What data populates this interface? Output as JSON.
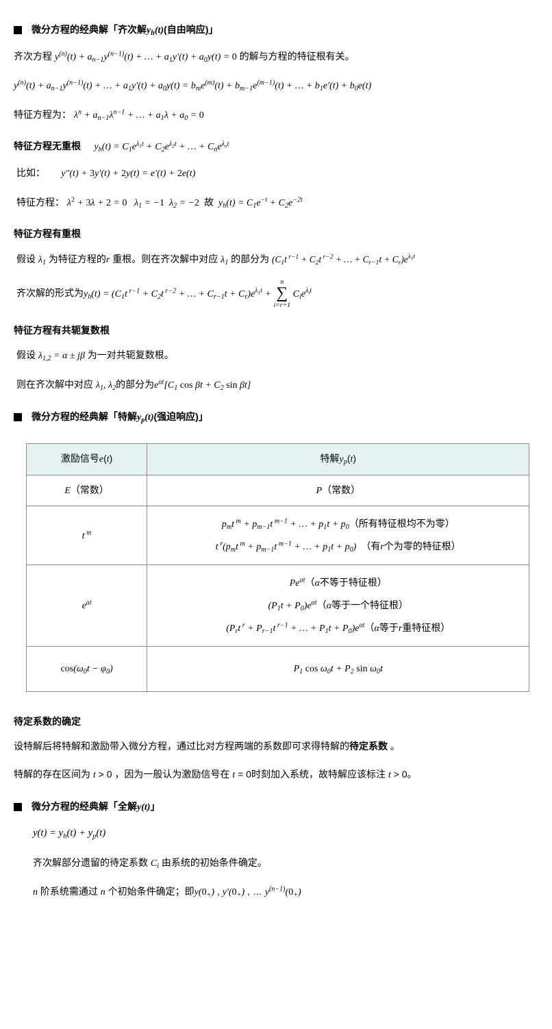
{
  "sec1": {
    "title_pre": "微分方程的经典解「齐次解",
    "title_math": "y<span class='sub'>h</span>(t)",
    "title_post": "(自由响应)」",
    "p1_pre": "齐次方程 ",
    "p1_math": "y<span class='sup'>(n)</span>(t) + a<span class='sub'>n−1</span>y<span class='sup'>(n−1)</span>(t) + … + a<span class='sub'>1</span>y′(t) + a<span class='sub'>0</span>y(t) = <span class='rm'>0</span>",
    "p1_post": " 的解与方程的特征根有关。",
    "p2_math": "y<span class='sup'>(n)</span>(t) + a<span class='sub'>n−1</span>y<span class='sup'>(n−1)</span>(t) + … + a<span class='sub'>1</span>y′(t) + a<span class='sub'>0</span>y(t) = b<span class='sub'>m</span>e<span class='sup'>(m)</span>(t) + b<span class='sub'>m−1</span>e<span class='sup'>(m−1)</span>(t) + … + b<span class='sub'>1</span>e′(t) + b<span class='sub'>0</span>e(t)",
    "p3_pre": "特征方程为：",
    "p3_math": "λ<span class='sup'>n</span> + a<span class='sub'>n−1</span>λ<span class='sup'>n−1</span> + … + a<span class='sub'>1</span>λ + a<span class='sub'>0</span> = <span class='rm'>0</span>"
  },
  "noRepeat": {
    "heading": "特征方程无重根",
    "eq": "y<span class='sub'>h</span>(t) = C<span class='sub'>1</span>e<span class='sup'>λ<span class='sub'>1</span>t</span> + C<span class='sub'>2</span>e<span class='sup'>λ<span class='sub'>2</span>t</span> + … + C<span class='sub'>n</span>e<span class='sup'>λ<span class='sub'>n</span>t</span>",
    "ex_label": "比如：",
    "ex_eq": "y″(t) + <span class='rm'>3</span>y′(t) + <span class='rm'>2</span>y(t) = e′(t) + <span class='rm'>2</span>e(t)",
    "char_label": "特征方程：",
    "char_eq": "λ<span class='sup'><span class='rm'>2</span></span> + <span class='rm'>3</span>λ + <span class='rm'>2</span> = <span class='rm'>0</span>&nbsp;&nbsp;&nbsp;λ<span class='sub'>1</span> = −<span class='rm'>1</span>&nbsp;&nbsp;λ<span class='sub'>2</span> = −<span class='rm'>2</span>&nbsp;&nbsp;<span class='rm'>故</span>&nbsp;&nbsp;y<span class='sub'>h</span>(t) = C<span class='sub'>1</span>e<span class='sup'>−t</span> + C<span class='sub'>2</span>e<span class='sup'>−2t</span>"
  },
  "repeat": {
    "heading": "特征方程有重根",
    "p1_pre": "假设 ",
    "p1_l1": "λ<span class='sub'>1</span>",
    "p1_mid1": " 为特征方程的",
    "p1_r": "r",
    "p1_mid2": " 重根。则在齐次解中对应 ",
    "p1_l2": "λ<span class='sub'>1</span>",
    "p1_mid3": " 的部分为 ",
    "p1_expr": "(C<span class='sub'>1</span>t<span class='sup'>&nbsp;r−1</span> + C<span class='sub'>2</span>t<span class='sup'>&nbsp;r−2</span> + … + C<span class='sub'>r−1</span>t + C<span class='sub'>r</span>)e<span class='sup'>λ<span class='sub'>1</span>t</span>",
    "p2_pre": "齐次解的形式为",
    "p2_expr1": "y<span class='sub'>h</span>(t) = (C<span class='sub'>1</span>t<span class='sup'>&nbsp;r−1</span> + C<span class='sub'>2</span>t<span class='sup'>&nbsp;r−2</span> + … + C<span class='sub'>r−1</span>t + C<span class='sub'>r</span>)e<span class='sup'>λ<span class='sub'>1</span>t</span> + ",
    "sum_top": "n",
    "sum_bot": "i=r+1",
    "p2_expr2": " C<span class='sub'>i</span>e<span class='sup'>λ<span class='sub'>i</span>t</span>"
  },
  "complex": {
    "heading": "特征方程有共轭复数根",
    "p1_pre": "假设 ",
    "p1_eq": "λ<span class='sub'>1,2</span> = α ± jβ",
    "p1_post": " 为一对共轭复数根。",
    "p2_pre": "则在齐次解中对应 ",
    "p2_l": "λ<span class='sub'>1</span>, λ<span class='sub'>2</span>",
    "p2_mid": "的部分为",
    "p2_expr": "e<span class='sup'>αt</span>[C<span class='sub'>1</span> <span class='rm'>cos</span> βt + C<span class='sub'>2</span> <span class='rm'>sin</span> βt]"
  },
  "sec2": {
    "title_pre": "微分方程的经典解「特解",
    "title_math": "y<span class='sub'>p</span>(t)",
    "title_post": "(强迫响应)」"
  },
  "table": {
    "h1": "激励信号<span class='math'>e</span>(<span class='math'>t</span>)",
    "h2": "特解<span class='math'>y<span class='sub'>p</span></span>(<span class='math'>t</span>)",
    "r1c1": "<span class='math'>E</span>（常数）",
    "r1c2": "<span class='math'>P</span>（常数）",
    "r2c1": "<span class='math'>t<span class='sup'>&nbsp;m</span></span>",
    "r2c2a": "<span class='math'>p<span class='sub'>m</span>t<span class='sup'>&nbsp;m</span> + p<span class='sub'>m−1</span>t<span class='sup'>&nbsp;m−1</span> + … + p<span class='sub'>1</span>t + p<span class='sub'>0</span></span>（所有特征根均不为零）",
    "r2c2b": "<span class='math'>t<span class='sup'>&nbsp;r</span>(p<span class='sub'>m</span>t<span class='sup'>&nbsp;m</span> + p<span class='sub'>m−1</span>t<span class='sup'>&nbsp;m−1</span> + … + p<span class='sub'>1</span>t + p<span class='sub'>0</span>)</span>　（有<span class='math'>r</span>个为零的特征根）",
    "r3c1": "<span class='math'>e<span class='sup'>at</span></span>",
    "r3c2a": "<span class='math'>Pe<span class='sup'>αt</span></span>（<span class='math'>α</span>不等于特征根）",
    "r3c2b": "<span class='math'>(P<span class='sub'>1</span>t + P<span class='sub'>0</span>)e<span class='sup'>αt</span></span>（<span class='math'>α</span>等于一个特征根）",
    "r3c2c": "<span class='math'>(P<span class='sub'>r</span>t<span class='sup'>&nbsp;r</span> + P<span class='sub'>r−1</span>t<span class='sup'>&nbsp;r−1</span> + … + P<span class='sub'>1</span>t + P<span class='sub'>0</span>)e<span class='sup'>αt</span></span>（<span class='math'>α</span>等于<span class='math'>r</span>重特征根）",
    "r4c1": "<span class='math'><span class='rm'>cos</span>(ω<span class='sub'>0</span>t − φ<span class='sub'>0</span>)</span>",
    "r4c2": "<span class='math'>P<span class='sub'>1</span> <span class='rm'>cos</span> ω<span class='sub'>0</span>t + P<span class='sub'>2</span> <span class='rm'>sin</span> ω<span class='sub'>0</span>t</span>"
  },
  "coef": {
    "heading": "待定系数的确定",
    "p1": "设特解后将特解和激励带入微分方程，通过比对方程两端的系数即可求得特解的<b>待定系数</b> 。",
    "p2": "特解的存在区间为 <span class='math'>t</span> &gt; 0 ，因为一般认为激励信号在 <span class='math'>t</span> = 0时刻加入系统，故特解应该标注  <span class='math'>t</span> &gt; 0。"
  },
  "sec3": {
    "title_pre": "微分方程的经典解「全解",
    "title_math": "y(t)",
    "title_post": "」",
    "eq": "y(t) = y<span class='sub'>h</span>(t) + y<span class='sub'>p</span>(t)",
    "p1": "齐次解部分遗留的待定系数 <span class='math'>C<span class='sub'>i</span></span> 由系统的初始条件确定。",
    "p2": "<span class='math'>n</span> 阶系统需通过 <span class='math'>n</span> 个初始条件确定；即<span class='math'>y(<span class='rm'>0</span><span class='sub'>+</span>)</span> , <span class='math'>y′(<span class='rm'>0</span><span class='sub'>+</span>)</span> , … <span class='math'>y<span class='sup'>(n−1)</span>(<span class='rm'>0</span><span class='sub'>+</span>)</span>"
  },
  "colors": {
    "table_header_bg": "#e6f3f3",
    "border": "#888888",
    "text": "#000000",
    "bg": "#ffffff"
  }
}
